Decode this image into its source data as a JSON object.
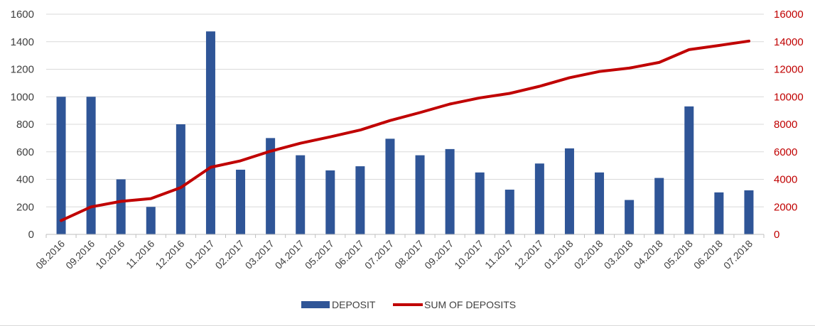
{
  "chart_data": {
    "type": "bar",
    "categories": [
      "08.2016",
      "09.2016",
      "10.2016",
      "11.2016",
      "12.2016",
      "01.2017",
      "02.2017",
      "03.2017",
      "04.2017",
      "05.2017",
      "06.2017",
      "07.2017",
      "08.2017",
      "09.2017",
      "10.2017",
      "11.2017",
      "12.2017",
      "01.2018",
      "02.2018",
      "03.2018",
      "04.2018",
      "05.2018",
      "06.2018",
      "07.2018"
    ],
    "series": [
      {
        "name": "DEPOSIT",
        "type": "bar",
        "axis": "left",
        "color": "#2f5597",
        "values": [
          1000,
          1000,
          400,
          200,
          800,
          1475,
          470,
          700,
          575,
          465,
          495,
          695,
          575,
          620,
          450,
          325,
          515,
          625,
          450,
          250,
          410,
          930,
          305,
          320
        ]
      },
      {
        "name": "SUM OF DEPOSITS",
        "type": "line",
        "axis": "right",
        "color": "#c00000",
        "values": [
          1000,
          2000,
          2400,
          2600,
          3400,
          4875,
          5345,
          6045,
          6620,
          7085,
          7580,
          8275,
          8850,
          9470,
          9920,
          10245,
          10760,
          11385,
          11835,
          12085,
          12495,
          13425,
          13730,
          14050
        ]
      }
    ],
    "yleft": {
      "lim": [
        0,
        1600
      ],
      "ticks": [
        "0",
        "200",
        "400",
        "600",
        "800",
        "1000",
        "1200",
        "1400",
        "1600"
      ]
    },
    "yright": {
      "lim": [
        0,
        16000
      ],
      "ticks": [
        "0",
        "2000",
        "4000",
        "6000",
        "8000",
        "10000",
        "12000",
        "14000",
        "16000"
      ]
    },
    "grid": true,
    "legend": {
      "position": "bottom",
      "items": [
        "DEPOSIT",
        "SUM OF DEPOSITS"
      ]
    },
    "title": "",
    "xlabel": "",
    "ylabel": ""
  }
}
